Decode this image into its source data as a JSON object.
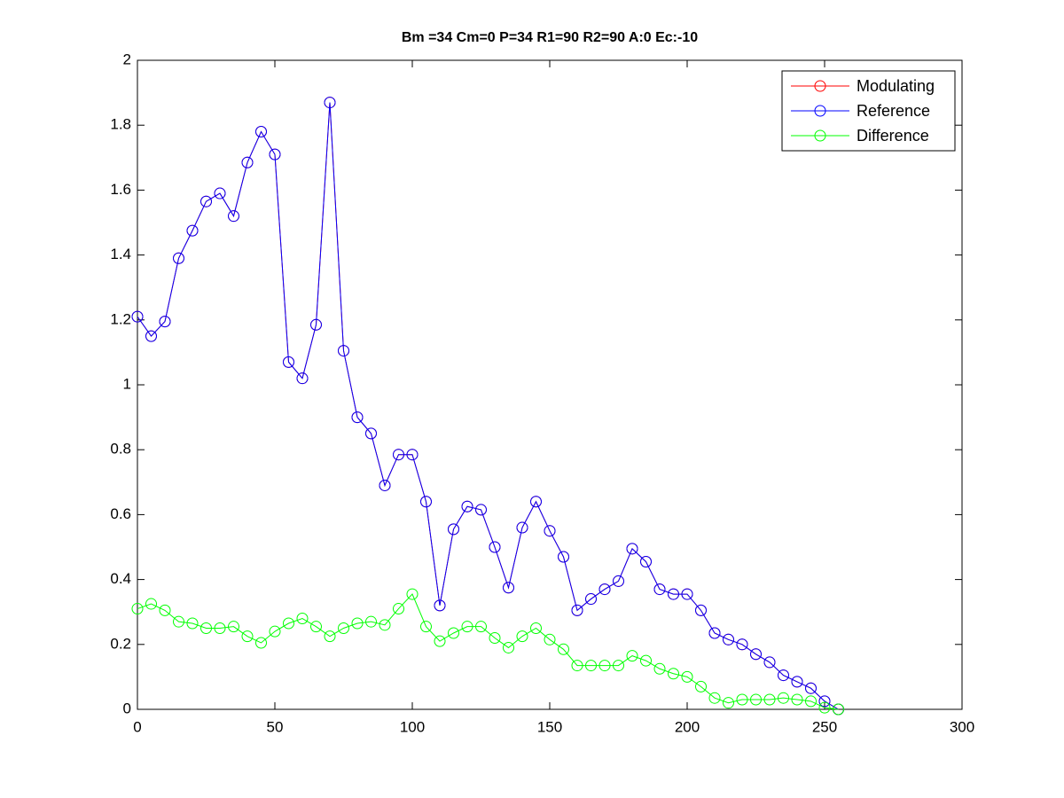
{
  "chart_data": {
    "type": "line",
    "title": "Bm =34  Cm=0  P=34  R1=90  R2=90  A:0  Ec:-10",
    "x": [
      0,
      5,
      10,
      15,
      20,
      25,
      30,
      35,
      40,
      45,
      50,
      55,
      60,
      65,
      70,
      75,
      80,
      85,
      90,
      95,
      100,
      105,
      110,
      115,
      120,
      125,
      130,
      135,
      140,
      145,
      150,
      155,
      160,
      165,
      170,
      175,
      180,
      185,
      190,
      195,
      200,
      205,
      210,
      215,
      220,
      225,
      230,
      235,
      240,
      245,
      250,
      255
    ],
    "series": [
      {
        "name": "Modulating",
        "color": "#ff0000",
        "values": [
          1.21,
          1.15,
          1.195,
          1.39,
          1.475,
          1.565,
          1.59,
          1.52,
          1.685,
          1.78,
          1.71,
          1.07,
          1.02,
          1.185,
          1.87,
          1.105,
          0.9,
          0.85,
          0.69,
          0.785,
          0.785,
          0.64,
          0.32,
          0.555,
          0.625,
          0.615,
          0.5,
          0.375,
          0.56,
          0.64,
          0.55,
          0.47,
          0.305,
          0.34,
          0.37,
          0.395,
          0.495,
          0.455,
          0.37,
          0.355,
          0.355,
          0.305,
          0.235,
          0.215,
          0.2,
          0.17,
          0.145,
          0.105,
          0.085,
          0.065,
          0.025,
          0
        ]
      },
      {
        "name": "Reference",
        "color": "#0000ff",
        "values": [
          1.21,
          1.15,
          1.195,
          1.39,
          1.475,
          1.565,
          1.59,
          1.52,
          1.685,
          1.78,
          1.71,
          1.07,
          1.02,
          1.185,
          1.87,
          1.105,
          0.9,
          0.85,
          0.69,
          0.785,
          0.785,
          0.64,
          0.32,
          0.555,
          0.625,
          0.615,
          0.5,
          0.375,
          0.56,
          0.64,
          0.55,
          0.47,
          0.305,
          0.34,
          0.37,
          0.395,
          0.495,
          0.455,
          0.37,
          0.355,
          0.355,
          0.305,
          0.235,
          0.215,
          0.2,
          0.17,
          0.145,
          0.105,
          0.085,
          0.065,
          0.025,
          0
        ]
      },
      {
        "name": "Difference",
        "color": "#00ff00",
        "values": [
          0.31,
          0.325,
          0.305,
          0.27,
          0.265,
          0.25,
          0.25,
          0.255,
          0.225,
          0.205,
          0.24,
          0.265,
          0.28,
          0.255,
          0.225,
          0.25,
          0.265,
          0.27,
          0.26,
          0.31,
          0.355,
          0.255,
          0.21,
          0.235,
          0.255,
          0.255,
          0.22,
          0.19,
          0.225,
          0.25,
          0.215,
          0.185,
          0.135,
          0.135,
          0.135,
          0.135,
          0.165,
          0.15,
          0.125,
          0.11,
          0.1,
          0.07,
          0.035,
          0.02,
          0.03,
          0.03,
          0.03,
          0.035,
          0.03,
          0.025,
          0.005,
          0
        ]
      }
    ],
    "xlim": [
      0,
      300
    ],
    "xticks": [
      0,
      50,
      100,
      150,
      200,
      250,
      300
    ],
    "ylim": [
      0,
      2
    ],
    "yticks": [
      0,
      0.2,
      0.4,
      0.6,
      0.8,
      1,
      1.2,
      1.4,
      1.6,
      1.8,
      2
    ],
    "grid": false,
    "legend": "upper right",
    "marker": "circle"
  }
}
